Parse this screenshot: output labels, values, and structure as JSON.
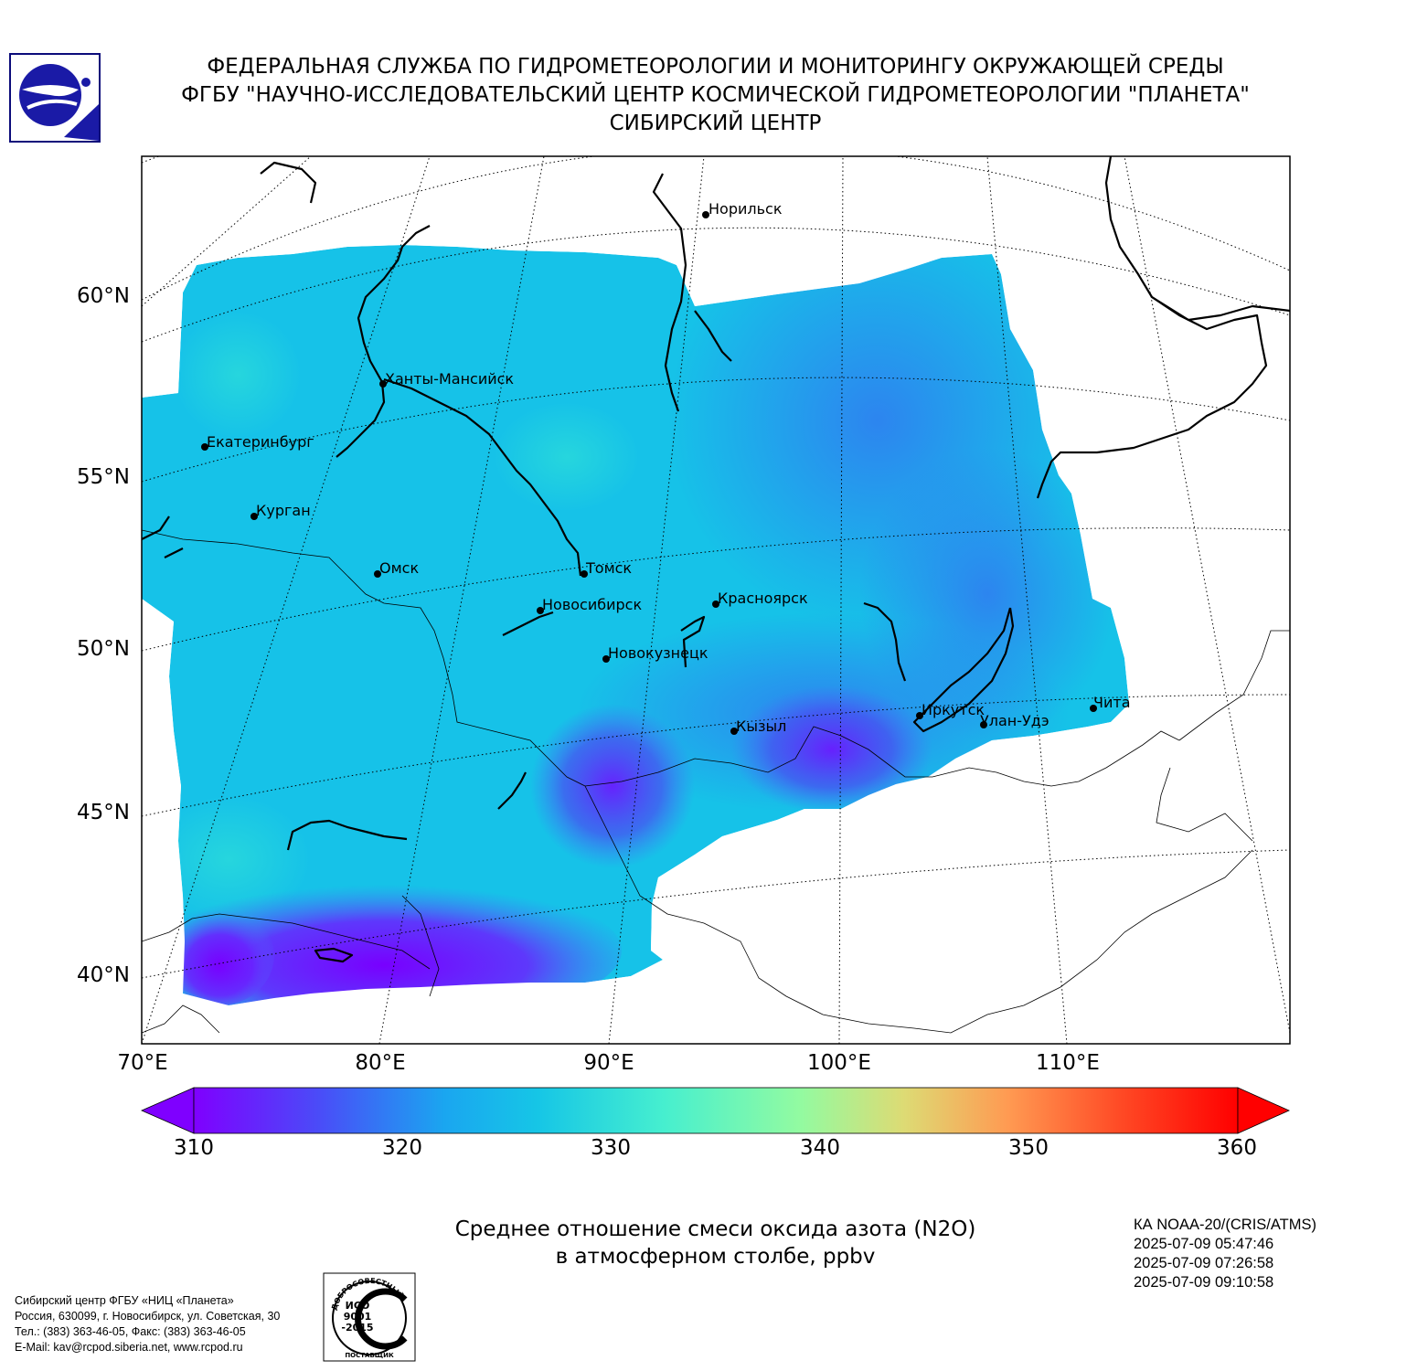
{
  "header": {
    "line1": "ФЕДЕРАЛЬНАЯ СЛУЖБА ПО ГИДРОМЕТЕОРОЛОГИИ И МОНИТОРИНГУ ОКРУЖАЮЩЕЙ СРЕДЫ",
    "line2": "ФГБУ \"НАУЧНО-ИССЛЕДОВАТЕЛЬСКИЙ ЦЕНТР КОСМИЧЕСКОЙ ГИДРОМЕТЕОРОЛОГИИ \"ПЛАНЕТА\"",
    "line3": "СИБИРСКИЙ ЦЕНТР"
  },
  "map": {
    "lat_labels": [
      "60°N",
      "55°N",
      "50°N",
      "45°N",
      "40°N"
    ],
    "lon_labels": [
      "70°E",
      "80°E",
      "90°E",
      "100°E",
      "110°E"
    ],
    "cities": [
      {
        "name": "Норильск"
      },
      {
        "name": "Ханты-Мансийск"
      },
      {
        "name": "Екатеринбург"
      },
      {
        "name": "Курган"
      },
      {
        "name": "Омск"
      },
      {
        "name": "Томск"
      },
      {
        "name": "Новосибирск"
      },
      {
        "name": "Красноярск"
      },
      {
        "name": "Новокузнецк"
      },
      {
        "name": "Кызыл"
      },
      {
        "name": "Иркутск"
      },
      {
        "name": "Улан-Удэ"
      },
      {
        "name": "Чита"
      }
    ],
    "data_fill_color": "#1ac8e6",
    "low_value_color": "#7a00ff"
  },
  "colorbar": {
    "min": 310,
    "max": 360,
    "ticks": [
      "310",
      "320",
      "330",
      "340",
      "350",
      "360"
    ],
    "colors": [
      "#7f00ff",
      "#4a6cf8",
      "#16b9e8",
      "#46f0cf",
      "#92fba1",
      "#dddb74",
      "#ff9a52",
      "#ff4824",
      "#ff0000"
    ]
  },
  "product": {
    "title_line1": "Среднее отношение смеси оксида азота (N2O)",
    "title_line2": "в атмосферном столбе, ppbv"
  },
  "satellite": {
    "instrument": "КА NOAA-20/(CRIS/ATMS)",
    "times": [
      "2025-07-09 05:47:46",
      "2025-07-09 07:26:58",
      "2025-07-09 09:10:58"
    ]
  },
  "footer": {
    "line1": "Сибирский центр ФГБУ «НИЦ «Планета»",
    "line2": "Россия, 630099, г. Новосибирск, ул. Советская, 30",
    "line3": "Тел.: (383) 363-46-05, Факс: (383) 363-46-05",
    "line4": "E-Mail: kav@rcpod.siberia.net, www.rcpod.ru"
  },
  "iso_badge": {
    "top_text": "ДОБРОСОВЕСТНЫЙ",
    "center_line1": "ИСО",
    "center_line2": "9001",
    "center_line3": "-2015",
    "bottom_text": "ПОСТАВЩИК"
  }
}
